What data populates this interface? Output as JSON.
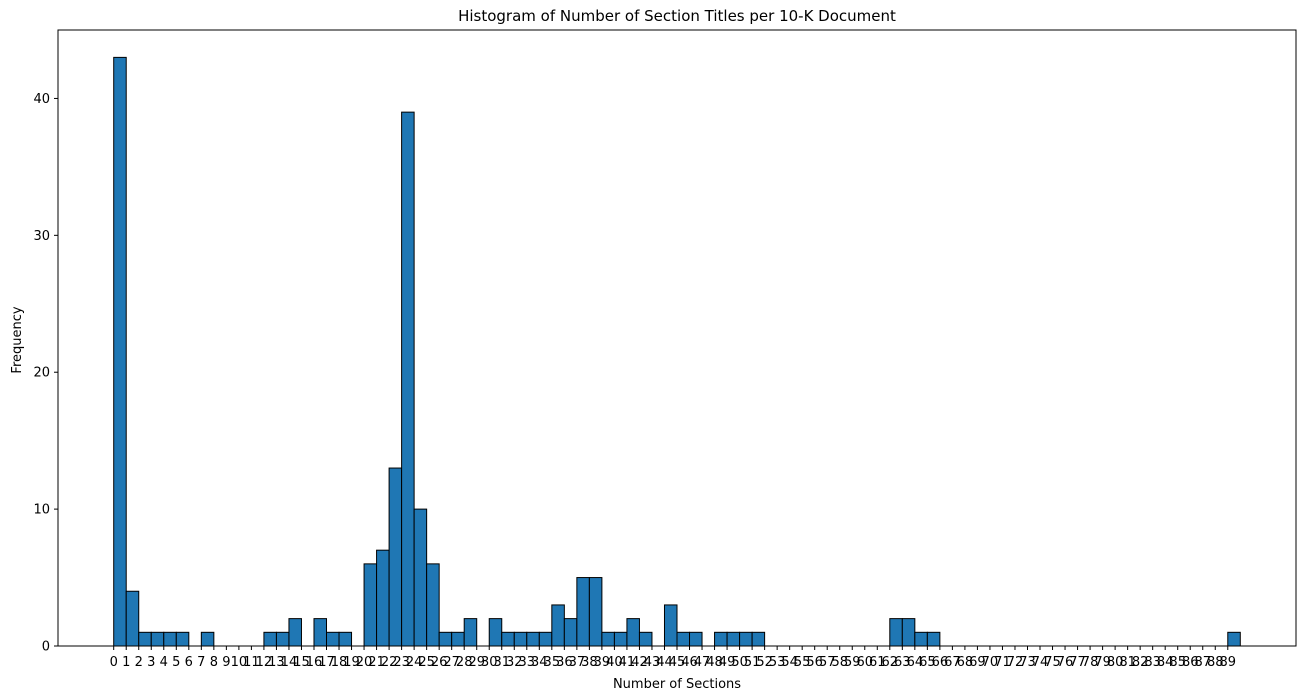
{
  "chart_data": {
    "type": "bar",
    "title": "Histogram of Number of Section Titles per 10-K Document",
    "xlabel": "Number of Sections",
    "ylabel": "Frequency",
    "ylim": [
      0,
      45
    ],
    "yticks": [
      0,
      10,
      20,
      30,
      40
    ],
    "xticks": [
      0,
      1,
      2,
      3,
      4,
      5,
      6,
      7,
      8,
      9,
      10,
      11,
      12,
      13,
      14,
      15,
      16,
      17,
      18,
      19,
      20,
      21,
      22,
      23,
      24,
      25,
      26,
      27,
      28,
      29,
      30,
      31,
      32,
      33,
      34,
      35,
      36,
      37,
      38,
      39,
      40,
      41,
      42,
      43,
      44,
      45,
      46,
      47,
      48,
      49,
      50,
      51,
      52,
      53,
      54,
      55,
      56,
      57,
      58,
      59,
      60,
      61,
      62,
      63,
      64,
      65,
      66,
      67,
      68,
      69,
      70,
      71,
      72,
      73,
      74,
      75,
      76,
      77,
      78,
      79,
      80,
      81,
      82,
      83,
      84,
      85,
      86,
      87,
      88,
      89
    ],
    "bins": [
      {
        "x": 0,
        "count": 43
      },
      {
        "x": 1,
        "count": 4
      },
      {
        "x": 2,
        "count": 1
      },
      {
        "x": 3,
        "count": 1
      },
      {
        "x": 4,
        "count": 1
      },
      {
        "x": 5,
        "count": 1
      },
      {
        "x": 7,
        "count": 1
      },
      {
        "x": 12,
        "count": 1
      },
      {
        "x": 13,
        "count": 1
      },
      {
        "x": 14,
        "count": 2
      },
      {
        "x": 16,
        "count": 2
      },
      {
        "x": 17,
        "count": 1
      },
      {
        "x": 18,
        "count": 1
      },
      {
        "x": 20,
        "count": 6
      },
      {
        "x": 21,
        "count": 7
      },
      {
        "x": 22,
        "count": 13
      },
      {
        "x": 23,
        "count": 39
      },
      {
        "x": 24,
        "count": 10
      },
      {
        "x": 25,
        "count": 6
      },
      {
        "x": 26,
        "count": 1
      },
      {
        "x": 27,
        "count": 1
      },
      {
        "x": 28,
        "count": 2
      },
      {
        "x": 30,
        "count": 2
      },
      {
        "x": 31,
        "count": 1
      },
      {
        "x": 32,
        "count": 1
      },
      {
        "x": 33,
        "count": 1
      },
      {
        "x": 34,
        "count": 1
      },
      {
        "x": 35,
        "count": 3
      },
      {
        "x": 36,
        "count": 2
      },
      {
        "x": 37,
        "count": 5
      },
      {
        "x": 38,
        "count": 5
      },
      {
        "x": 39,
        "count": 1
      },
      {
        "x": 40,
        "count": 1
      },
      {
        "x": 41,
        "count": 2
      },
      {
        "x": 42,
        "count": 1
      },
      {
        "x": 44,
        "count": 3
      },
      {
        "x": 45,
        "count": 1
      },
      {
        "x": 46,
        "count": 1
      },
      {
        "x": 48,
        "count": 1
      },
      {
        "x": 49,
        "count": 1
      },
      {
        "x": 50,
        "count": 1
      },
      {
        "x": 51,
        "count": 1
      },
      {
        "x": 62,
        "count": 2
      },
      {
        "x": 63,
        "count": 2
      },
      {
        "x": 64,
        "count": 1
      },
      {
        "x": 65,
        "count": 1
      },
      {
        "x": 89,
        "count": 1
      }
    ],
    "colors": {
      "bar_fill": "#1f77b4",
      "bar_edge": "#000000"
    },
    "grid": false
  }
}
